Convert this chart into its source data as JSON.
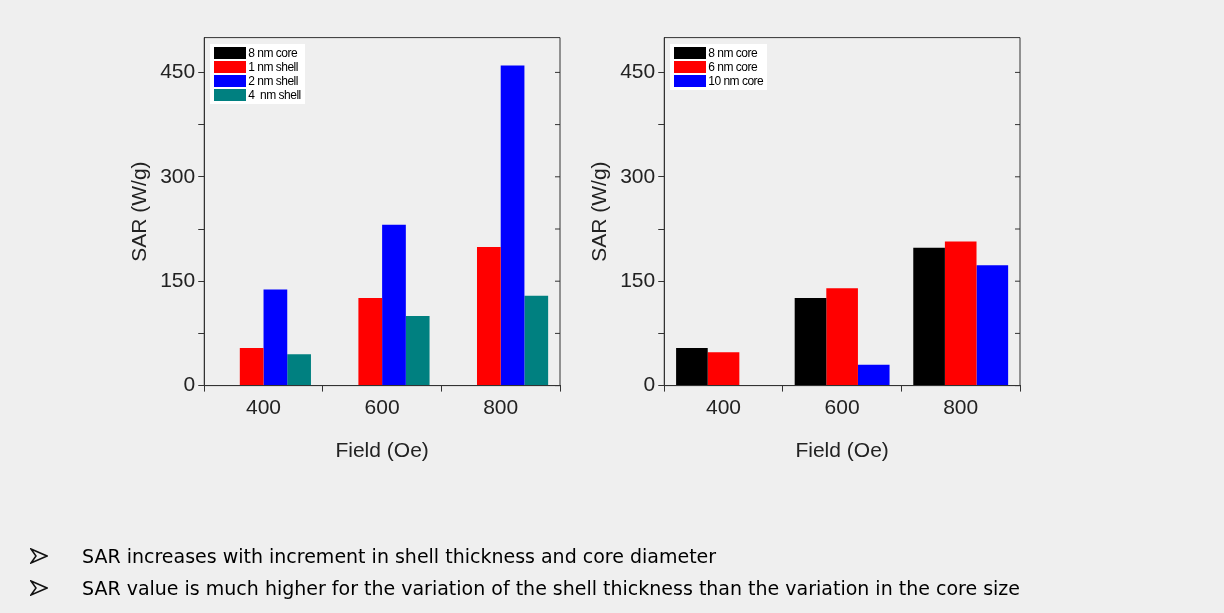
{
  "chart_data": [
    {
      "type": "bar",
      "xlabel": "Field (Oe)",
      "ylabel": "SAR (W/g)",
      "categories": [
        "400",
        "600",
        "800"
      ],
      "series": [
        {
          "name": "8 nm core",
          "color": "#000000",
          "values": [
            null,
            null,
            null
          ]
        },
        {
          "name": "1 nm shell",
          "color": "#ff0000",
          "values": [
            54,
            126,
            199
          ]
        },
        {
          "name": "2 nm shell",
          "color": "#0000ff",
          "values": [
            138,
            231,
            460
          ]
        },
        {
          "name": "4  nm shell",
          "color": "#008080",
          "values": [
            45,
            100,
            129
          ]
        }
      ],
      "ylim": [
        0,
        500
      ],
      "yticks": [
        0,
        {
          "value": 75,
          "label": null
        },
        150,
        {
          "value": 225,
          "label": null
        },
        300,
        {
          "value": 375,
          "label": null
        },
        450
      ],
      "grid": false,
      "legend": "top left"
    },
    {
      "type": "bar",
      "xlabel": "Field (Oe)",
      "ylabel": "SAR (W/g)",
      "categories": [
        "400",
        "600",
        "800"
      ],
      "series": [
        {
          "name": "8 nm core",
          "color": "#000000",
          "values": [
            54,
            126,
            198
          ]
        },
        {
          "name": "6 nm core",
          "color": "#ff0000",
          "values": [
            48,
            140,
            207
          ]
        },
        {
          "name": "10 nm core",
          "color": "#0000ff",
          "values": [
            null,
            30,
            173
          ]
        }
      ],
      "ylim": [
        0,
        500
      ],
      "yticks": [
        0,
        {
          "value": 75,
          "label": null
        },
        150,
        {
          "value": 225,
          "label": null
        },
        300,
        {
          "value": 375,
          "label": null
        },
        450
      ],
      "grid": false,
      "legend": "top left",
      "annotations": [
        "SAR increases with increment in shell thickness and core diameter",
        "SAR value is much higher for the variation of the shell thickness than the variation in the core size"
      ]
    }
  ]
}
